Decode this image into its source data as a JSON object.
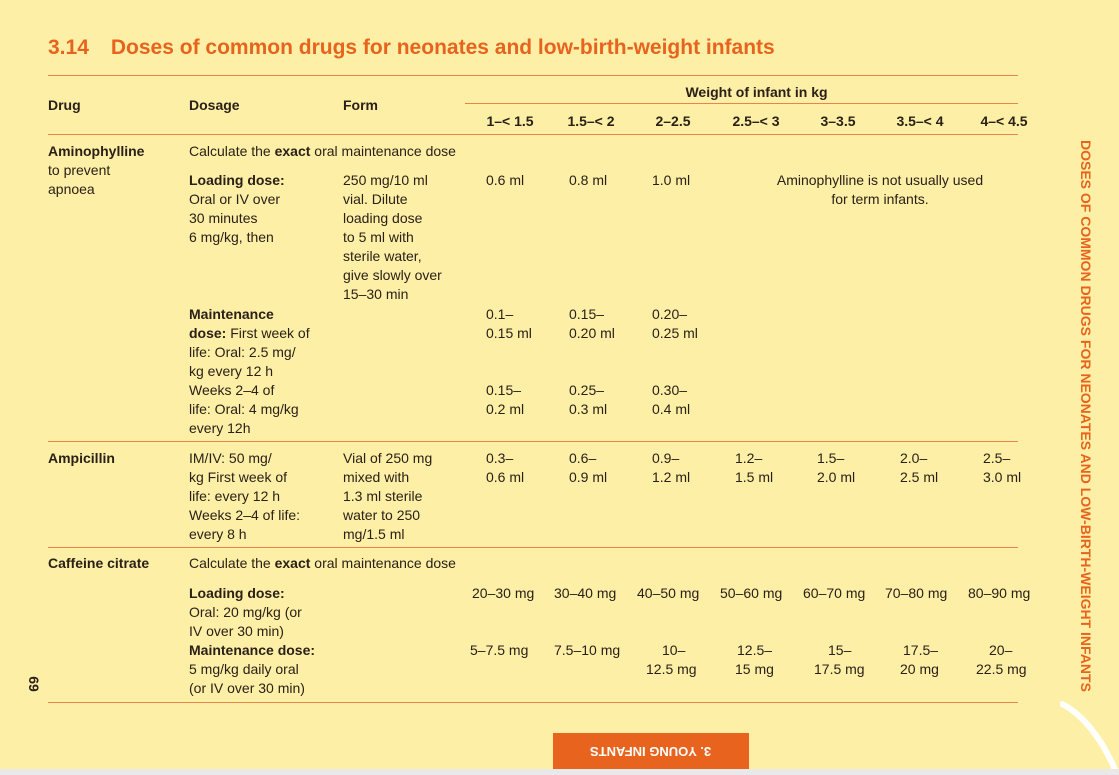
{
  "section": {
    "number": "3.14",
    "title": "Doses of common drugs for neonates and low-birth-weight infants"
  },
  "header": {
    "drug": "Drug",
    "dosage": "Dosage",
    "form": "Form",
    "weight_group": "Weight of infant in kg",
    "weights": [
      "1–< 1.5",
      "1.5–< 2",
      "2–2.5",
      "2.5–< 3",
      "3–3.5",
      "3.5–< 4",
      "4–< 4.5"
    ]
  },
  "aminophylline": {
    "name": "Aminophylline",
    "name_rest": [
      "to prevent",
      "apnoea"
    ],
    "calc_pre": "Calculate the ",
    "calc_bold": "exact",
    "calc_post": " oral maintenance dose",
    "loading": {
      "label": "Loading dose:",
      "lines": [
        "Oral or IV over",
        "30 minutes",
        "6 mg/kg, then"
      ],
      "form": [
        "250 mg/10 ml",
        "vial. Dilute",
        "loading dose",
        "to 5 ml with",
        "sterile water,",
        "give slowly over",
        "15–30 min"
      ],
      "values": [
        "0.6 ml",
        "0.8 ml",
        "1.0 ml"
      ],
      "note": [
        "Aminophylline is not usually used",
        "for term infants."
      ]
    },
    "maintenance": {
      "label": "Maintenance",
      "label2_bold": "dose:",
      "label2_rest": " First week of",
      "lines": [
        "life: Oral: 2.5 mg/",
        "kg every 12 h",
        "Weeks 2–4 of",
        "life: Oral: 4 mg/kg",
        "every 12h"
      ],
      "week1": [
        [
          "0.1–",
          "0.15 ml"
        ],
        [
          "0.15–",
          "0.20 ml"
        ],
        [
          "0.20–",
          "0.25 ml"
        ]
      ],
      "weeks2_4": [
        [
          "0.15–",
          "0.2 ml"
        ],
        [
          "0.25–",
          "0.3 ml"
        ],
        [
          "0.30–",
          "0.4 ml"
        ]
      ]
    }
  },
  "ampicillin": {
    "name": "Ampicillin",
    "dosage": [
      "IM/IV: 50 mg/",
      "kg First week of",
      "life: every 12 h",
      "Weeks 2–4 of life:",
      "every 8 h"
    ],
    "form": [
      "Vial of 250 mg",
      "mixed with",
      "1.3 ml sterile",
      "water to 250",
      "mg/1.5 ml"
    ],
    "values": [
      [
        "0.3–",
        "0.6 ml"
      ],
      [
        "0.6–",
        "0.9 ml"
      ],
      [
        "0.9–",
        "1.2 ml"
      ],
      [
        "1.2–",
        "1.5 ml"
      ],
      [
        "1.5–",
        "2.0 ml"
      ],
      [
        "2.0–",
        "2.5 ml"
      ],
      [
        "2.5–",
        "3.0 ml"
      ]
    ]
  },
  "caffeine": {
    "name": "Caffeine citrate",
    "calc_pre": "Calculate the ",
    "calc_bold": "exact",
    "calc_post": " oral maintenance dose",
    "loading": {
      "label": "Loading dose:",
      "lines": [
        "Oral: 20 mg/kg (or",
        "IV over 30 min)"
      ],
      "values": [
        "20–30 mg",
        "30–40 mg",
        "40–50 mg",
        "50–60 mg",
        "60–70 mg",
        "70–80 mg",
        "80–90 mg"
      ]
    },
    "maintenance": {
      "label": "Maintenance dose:",
      "lines": [
        "5 mg/kg daily oral",
        "(or IV over 30 min)"
      ],
      "values": [
        [
          "5–7.5 mg",
          ""
        ],
        [
          "7.5–10 mg",
          ""
        ],
        [
          "10–",
          "12.5 mg"
        ],
        [
          "12.5–",
          "15 mg"
        ],
        [
          "15–",
          "17.5 mg"
        ],
        [
          "17.5–",
          "20 mg"
        ],
        [
          "20–",
          "22.5 mg"
        ]
      ]
    }
  },
  "sidebar_text": "DOSES OF COMMON DRUGS FOR NEONATES AND LOW-BIRTH-WEIGHT INFANTS",
  "page_number": "69",
  "chapter_tab": "3. YOUNG INFANTS",
  "colors": {
    "accent": "#e8631d",
    "background": "#fdf0a6",
    "rule": "#e8864a"
  }
}
